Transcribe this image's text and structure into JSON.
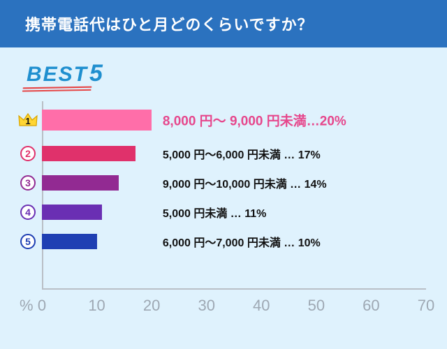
{
  "header": {
    "title": "携帯電話代はひと月どのくらいですか？"
  },
  "best5": {
    "text": "BEST",
    "number": "5",
    "color": "#1f8fcf",
    "underline_color": "#e64545"
  },
  "chart": {
    "type": "bar",
    "orientation": "horizontal",
    "xmax": 70,
    "xtick_step": 10,
    "xticks": [
      0,
      10,
      20,
      30,
      40,
      50,
      60,
      70
    ],
    "axis_unit": "%",
    "background_color": "#dff2fd",
    "axis_color": "#b9bfc6",
    "tick_font_color": "#9ea8b3",
    "tick_fontsize": 22,
    "top_label_fontsize": 19,
    "rest_label_fontsize": 16,
    "top_bar_height": 30,
    "rest_bar_height": 22,
    "label_start_pct": 22,
    "items": [
      {
        "rank": 1,
        "value": 20,
        "bar_color": "#ff6ea9",
        "rank_style": "crown",
        "crown_fill": "#ffd633",
        "crown_stroke": "#d9a400",
        "label": "8,000 円～ 9,000 円未満…20%",
        "label_color": "#e6478c"
      },
      {
        "rank": 2,
        "value": 17,
        "bar_color": "#e0316b",
        "rank_style": "circle",
        "badge_color": "#e0316b",
        "label": "5,000 円～6,000 円未満  …  17%",
        "label_color": "#111111"
      },
      {
        "rank": 3,
        "value": 14,
        "bar_color": "#922a92",
        "rank_style": "circle",
        "badge_color": "#922a92",
        "label": "9,000 円～10,000 円未満  …  14%",
        "label_color": "#111111"
      },
      {
        "rank": 4,
        "value": 11,
        "bar_color": "#6a2fb3",
        "rank_style": "circle",
        "badge_color": "#6a2fb3",
        "label": "5,000 円未満    …   11%",
        "label_color": "#111111"
      },
      {
        "rank": 5,
        "value": 10,
        "bar_color": "#1f3fb3",
        "rank_style": "circle",
        "badge_color": "#1f3fb3",
        "label": "6,000 円～7,000 円未満  …  10%",
        "label_color": "#111111"
      }
    ]
  }
}
